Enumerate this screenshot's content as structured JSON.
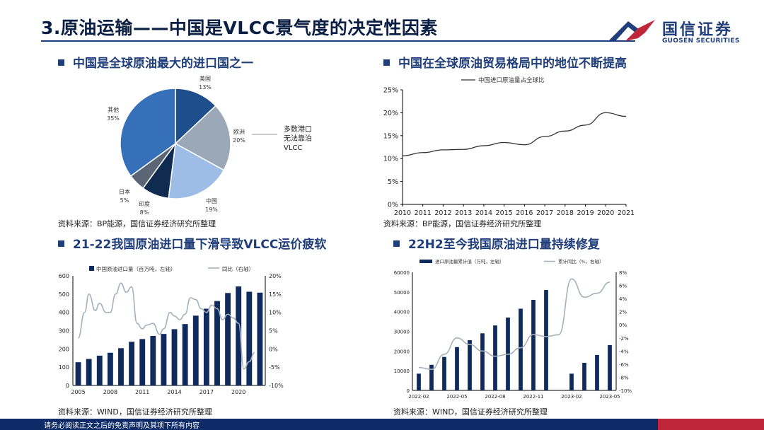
{
  "header": {
    "title": "3.原油运输——中国是VLCC景气度的决定性因素"
  },
  "logo": {
    "name_cn": "国信证券",
    "name_en": "GUOSEN SECURITIES"
  },
  "sections": [
    {
      "title": "中国是全球原油最大的进口国之一",
      "source": "资料来源：BP能源，国信证券经济研究所整理"
    },
    {
      "title": "中国在全球原油贸易格局中的地位不断提高",
      "source": "资料来源：BP能源，国信证券经济研究所整理"
    },
    {
      "title": "21-22我国原油进口量下滑导致VLCC运价疲软",
      "source": "资料来源：WIND，国信证券经济研究所整理"
    },
    {
      "title": "22H2至今我国原油进口量持续修复",
      "source": "资料来源：WIND，国信证券经济研究所整理"
    }
  ],
  "footer": {
    "disclaimer": "请务必阅读正文之后的免责声明及其项下所有内容"
  },
  "chart_data": [
    {
      "type": "pie",
      "title": "中国是全球原油最大的进口国之一",
      "slices": [
        {
          "label": "美国",
          "pct": "13%",
          "value": 13,
          "color": "#1f4e8c"
        },
        {
          "label": "欧洲",
          "pct": "20%",
          "value": 20,
          "color": "#9aa8b8"
        },
        {
          "label": "中国",
          "pct": "19%",
          "value": 19,
          "color": "#9dbde6"
        },
        {
          "label": "印度",
          "pct": "8%",
          "value": 8,
          "color": "#0f2b4f"
        },
        {
          "label": "日本",
          "pct": "5%",
          "value": 5,
          "color": "#5a6676"
        },
        {
          "label": "其他",
          "pct": "35%",
          "value": 35,
          "color": "#3670b8"
        }
      ],
      "annotation": [
        "多数港口",
        "无法靠泊",
        "VLCC"
      ]
    },
    {
      "type": "line",
      "title": "中国在全球原油贸易格局中的地位不断提高",
      "series_name": "中国进口原油量占全球比",
      "x": [
        "2010",
        "2011",
        "2012",
        "2013",
        "2014",
        "2015",
        "2016",
        "2017",
        "2018",
        "2019",
        "2020",
        "2021"
      ],
      "values": [
        10.6,
        11.3,
        11.9,
        12.0,
        12.8,
        13.5,
        13.0,
        14.8,
        16.0,
        17.3,
        20.0,
        19.2
      ],
      "yticks": [
        "0%",
        "5%",
        "10%",
        "15%",
        "20%",
        "25%"
      ],
      "ylim": [
        0,
        25
      ]
    },
    {
      "type": "bar+line",
      "title": "21-22我国原油进口量下滑导致VLCC运价疲软",
      "legend": [
        "中国原油进口量（百万吨，左轴）",
        "同比（右轴）"
      ],
      "xticks": [
        "2005",
        "2008",
        "2011",
        "2014",
        "2017",
        "2020"
      ],
      "years": [
        2005,
        2006,
        2007,
        2008,
        2009,
        2010,
        2011,
        2012,
        2013,
        2014,
        2015,
        2016,
        2017,
        2018,
        2019,
        2020,
        2021,
        2022
      ],
      "bar_values": [
        127,
        145,
        163,
        179,
        204,
        239,
        254,
        271,
        282,
        308,
        336,
        382,
        420,
        462,
        506,
        542,
        513,
        508
      ],
      "yoy_points": [
        [
          0,
          3
        ],
        [
          0.6,
          10
        ],
        [
          1,
          15
        ],
        [
          1.6,
          10.5
        ],
        [
          2,
          12.5
        ],
        [
          2.6,
          10
        ],
        [
          3,
          10
        ],
        [
          3.5,
          15
        ],
        [
          4,
          18
        ],
        [
          4.5,
          15.5
        ],
        [
          5,
          17
        ],
        [
          5.5,
          7
        ],
        [
          6,
          5.5
        ],
        [
          6.4,
          6.5
        ],
        [
          7,
          7
        ],
        [
          7.6,
          4
        ],
        [
          8,
          5.5
        ],
        [
          8.6,
          10
        ],
        [
          9,
          9
        ],
        [
          9.5,
          8
        ],
        [
          10,
          9.5
        ],
        [
          10.5,
          14
        ],
        [
          11,
          13.5
        ],
        [
          11.5,
          11
        ],
        [
          12,
          10
        ],
        [
          12.5,
          12
        ],
        [
          13,
          11
        ],
        [
          13.5,
          8
        ],
        [
          14,
          9.5
        ],
        [
          14.5,
          8.5
        ],
        [
          15,
          7
        ],
        [
          15.5,
          -5.5
        ],
        [
          16,
          -3.5
        ],
        [
          16.5,
          -1
        ]
      ],
      "ylim_left": [
        0,
        600
      ],
      "yticks_left": [
        "0",
        "100",
        "200",
        "300",
        "400",
        "500",
        "600"
      ],
      "ylim_right": [
        -10,
        20
      ],
      "yticks_right": [
        "-10%",
        "-5%",
        "0%",
        "5%",
        "10%",
        "15%",
        "20%"
      ]
    },
    {
      "type": "bar+line",
      "title": "22H2至今我国原油进口量持续修复",
      "legend": [
        "进口原油量累计值（万吨，左轴）",
        "累计同比（%，右轴）"
      ],
      "xticks": [
        "2022-02",
        "2022-05",
        "2022-08",
        "2022-11",
        "2023-02",
        "2023-05"
      ],
      "months": [
        "2022-02",
        "2022-03",
        "2022-04",
        "2022-05",
        "2022-06",
        "2022-07",
        "2022-08",
        "2022-09",
        "2022-10",
        "2022-11",
        "2022-12",
        "2023-01",
        "2023-02",
        "2023-03",
        "2023-04",
        "2023-05"
      ],
      "bar_values": [
        8500,
        13000,
        17000,
        22000,
        25500,
        29000,
        33000,
        37000,
        41500,
        46000,
        51000,
        null,
        8500,
        14000,
        18000,
        23000
      ],
      "yoy_values": [
        -6.5,
        -6.8,
        -4.5,
        -2.0,
        -3.0,
        -4.0,
        -4.8,
        -4.5,
        -3.5,
        -1.5,
        -1.8,
        -1.5,
        7.0,
        4.2,
        4.8,
        6.5
      ],
      "ylim_left": [
        0,
        60000
      ],
      "yticks_left": [
        "0",
        "10000",
        "20000",
        "30000",
        "40000",
        "50000",
        "60000"
      ],
      "ylim_right": [
        -10,
        8
      ],
      "yticks_right": [
        "-10%",
        "-8%",
        "-6%",
        "-4%",
        "-2%",
        "0%",
        "2%",
        "4%",
        "6%",
        "8%"
      ]
    }
  ]
}
